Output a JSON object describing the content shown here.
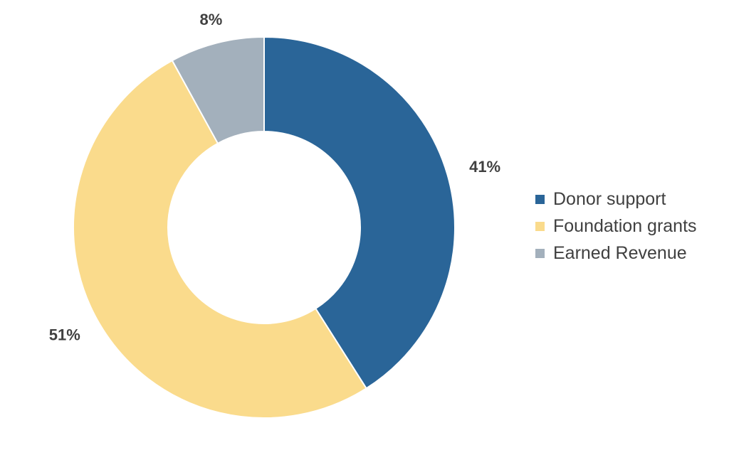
{
  "chart_data": {
    "type": "pie",
    "subtype": "donut",
    "categories": [
      "Donor support",
      "Foundation grants",
      "Earned Revenue"
    ],
    "values": [
      41,
      51,
      8
    ],
    "unit": "%",
    "data_labels": [
      "41%",
      "51%",
      "8%"
    ],
    "colors": [
      "#2A6598",
      "#FADB8C",
      "#A3B0BC"
    ],
    "legend_position": "right",
    "title": ""
  }
}
